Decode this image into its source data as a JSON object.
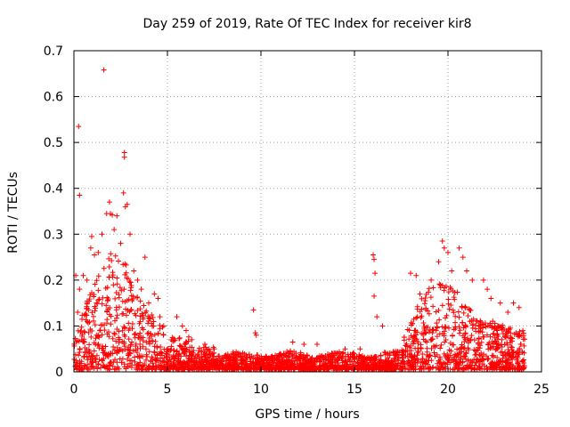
{
  "chart_data": {
    "type": "scatter",
    "title": "Day 259 of 2019, Rate Of TEC Index for receiver kir8",
    "xlabel": "GPS time / hours",
    "ylabel": "ROTI / TECUs",
    "xlim": [
      0,
      25
    ],
    "ylim": [
      0,
      0.7
    ],
    "xticks": [
      0,
      5,
      10,
      15,
      20,
      25
    ],
    "yticks": [
      0,
      0.1,
      0.2,
      0.3,
      0.4,
      0.5,
      0.6,
      0.7
    ],
    "xtick_labels": [
      "0",
      "5",
      "10",
      "15",
      "20",
      "25"
    ],
    "ytick_labels": [
      "0",
      "0.1",
      "0.2",
      "0.3",
      "0.4",
      "0.5",
      "0.6",
      "0.7"
    ],
    "grid": true,
    "marker": "+",
    "series": [
      {
        "name": "ROTI",
        "color": "#ff0000",
        "points": [
          [
            0.25,
            0.535
          ],
          [
            1.6,
            0.658
          ],
          [
            0.3,
            0.385
          ],
          [
            2.7,
            0.478
          ],
          [
            2.7,
            0.468
          ],
          [
            2.65,
            0.39
          ],
          [
            2.85,
            0.365
          ],
          [
            2.75,
            0.36
          ],
          [
            1.9,
            0.37
          ],
          [
            1.95,
            0.345
          ],
          [
            2.05,
            0.342
          ],
          [
            2.3,
            0.34
          ],
          [
            2.15,
            0.31
          ],
          [
            1.5,
            0.3
          ],
          [
            1.75,
            0.345
          ],
          [
            0.95,
            0.295
          ],
          [
            0.9,
            0.27
          ],
          [
            1.1,
            0.255
          ],
          [
            3.8,
            0.25
          ],
          [
            0.5,
            0.21
          ],
          [
            0.1,
            0.21
          ],
          [
            0.3,
            0.18
          ],
          [
            0.2,
            0.13
          ],
          [
            0.7,
            0.2
          ],
          [
            1.3,
            0.26
          ],
          [
            2.5,
            0.28
          ],
          [
            3.0,
            0.3
          ],
          [
            3.2,
            0.22
          ],
          [
            3.4,
            0.2
          ],
          [
            3.6,
            0.18
          ],
          [
            4.0,
            0.15
          ],
          [
            4.3,
            0.17
          ],
          [
            4.5,
            0.16
          ],
          [
            4.6,
            0.12
          ],
          [
            4.8,
            0.1
          ],
          [
            5.5,
            0.12
          ],
          [
            5.8,
            0.1
          ],
          [
            6.0,
            0.09
          ],
          [
            6.3,
            0.07
          ],
          [
            7.0,
            0.06
          ],
          [
            7.5,
            0.05
          ],
          [
            8.5,
            0.04
          ],
          [
            9.6,
            0.135
          ],
          [
            9.7,
            0.085
          ],
          [
            9.75,
            0.08
          ],
          [
            11.7,
            0.065
          ],
          [
            12.3,
            0.06
          ],
          [
            13.0,
            0.06
          ],
          [
            14.5,
            0.05
          ],
          [
            15.3,
            0.05
          ],
          [
            16.0,
            0.255
          ],
          [
            16.05,
            0.245
          ],
          [
            16.1,
            0.215
          ],
          [
            16.05,
            0.165
          ],
          [
            16.2,
            0.12
          ],
          [
            16.5,
            0.1
          ],
          [
            18.0,
            0.215
          ],
          [
            18.3,
            0.21
          ],
          [
            18.5,
            0.17
          ],
          [
            19.1,
            0.2
          ],
          [
            19.5,
            0.24
          ],
          [
            19.7,
            0.285
          ],
          [
            19.8,
            0.27
          ],
          [
            20.0,
            0.26
          ],
          [
            20.2,
            0.22
          ],
          [
            20.6,
            0.27
          ],
          [
            20.8,
            0.25
          ],
          [
            21.0,
            0.22
          ],
          [
            21.3,
            0.2
          ],
          [
            21.9,
            0.2
          ],
          [
            22.1,
            0.18
          ],
          [
            22.3,
            0.16
          ],
          [
            22.8,
            0.15
          ],
          [
            23.2,
            0.13
          ],
          [
            23.5,
            0.15
          ],
          [
            23.8,
            0.14
          ],
          [
            24.0,
            0.09
          ]
        ]
      }
    ]
  }
}
